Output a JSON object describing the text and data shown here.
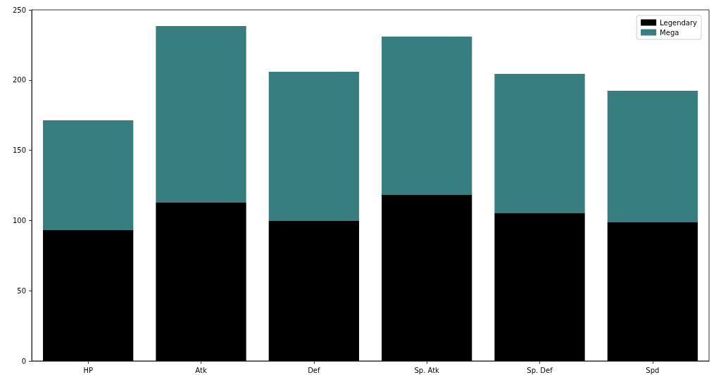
{
  "chart_data": {
    "type": "bar",
    "stacked": true,
    "categories": [
      "HP",
      "Atk",
      "Def",
      "Sp. Atk",
      "Sp. Def",
      "Spd"
    ],
    "series": [
      {
        "name": "Legendary",
        "color": "#000000",
        "values": [
          93.2,
          112.7,
          99.7,
          118.2,
          105.2,
          98.7
        ]
      },
      {
        "name": "Mega",
        "color": "#367e7f",
        "values": [
          78.1,
          125.8,
          106.2,
          112.8,
          99.2,
          93.7
        ]
      }
    ],
    "ylim": [
      0,
      250
    ],
    "yticks": [
      0,
      50,
      100,
      150,
      200,
      250
    ],
    "grid": false,
    "legend": "top right"
  }
}
